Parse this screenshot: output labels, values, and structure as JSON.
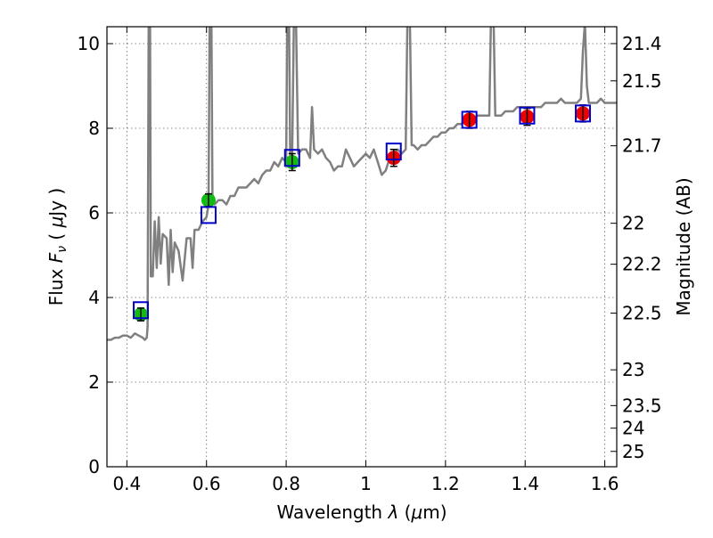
{
  "chart_data": {
    "type": "scatter",
    "title": "",
    "xlabel": "Wavelength  λ (μm)",
    "ylabel": "Flux  F_ν  ( μJy )",
    "ylabel_parts": {
      "prefix": "Flux ",
      "var": "F",
      "sub": "ν",
      "open": " ( ",
      "mu": "μ",
      "unit": "Jy )"
    },
    "xlabel_parts": {
      "prefix": "Wavelength  ",
      "var": "λ",
      "open": " (",
      "mu": "μ",
      "unit": "m)"
    },
    "y2label": "Magnitude (AB)",
    "xlim": [
      0.35,
      1.63
    ],
    "ylim": [
      0,
      10.4
    ],
    "grid": true,
    "x_ticks": [
      0.4,
      0.6,
      0.8,
      1.0,
      1.2,
      1.4,
      1.6
    ],
    "x_tick_labels": [
      "0.4",
      "0.6",
      "0.8",
      "1",
      "1.2",
      "1.4",
      "1.6"
    ],
    "y_ticks": [
      0,
      2,
      4,
      6,
      8,
      10
    ],
    "y_tick_labels": [
      "0",
      "2",
      "4",
      "6",
      "8",
      "10"
    ],
    "mag_ticks": [
      21.4,
      21.5,
      21.7,
      22,
      22.2,
      22.5,
      23,
      23.5,
      24,
      25
    ],
    "mag_tick_labels": [
      "21.4",
      "21.5",
      "21.7",
      "22",
      "22.2",
      "22.5",
      "23",
      "23.5",
      "24",
      "25"
    ],
    "colors": {
      "spectrum": "#808080",
      "model": "#0000cc",
      "optical": "#11bb11",
      "nir": "#ee0000"
    },
    "spectrum": [
      [
        0.35,
        3.0
      ],
      [
        0.36,
        3.0
      ],
      [
        0.37,
        3.05
      ],
      [
        0.38,
        3.05
      ],
      [
        0.39,
        3.1
      ],
      [
        0.4,
        3.1
      ],
      [
        0.41,
        3.05
      ],
      [
        0.42,
        3.15
      ],
      [
        0.43,
        3.1
      ],
      [
        0.44,
        3.05
      ],
      [
        0.445,
        3.0
      ],
      [
        0.45,
        3.05
      ],
      [
        0.452,
        3.3
      ],
      [
        0.455,
        11
      ],
      [
        0.458,
        11
      ],
      [
        0.46,
        4.5
      ],
      [
        0.465,
        4.5
      ],
      [
        0.47,
        5.8
      ],
      [
        0.475,
        4.7
      ],
      [
        0.48,
        5.9
      ],
      [
        0.485,
        4.8
      ],
      [
        0.49,
        5.5
      ],
      [
        0.5,
        5.4
      ],
      [
        0.505,
        4.3
      ],
      [
        0.51,
        5.6
      ],
      [
        0.515,
        4.6
      ],
      [
        0.52,
        5.3
      ],
      [
        0.53,
        5.1
      ],
      [
        0.54,
        4.4
      ],
      [
        0.55,
        5.4
      ],
      [
        0.56,
        5.4
      ],
      [
        0.565,
        4.7
      ],
      [
        0.57,
        5.6
      ],
      [
        0.58,
        5.6
      ],
      [
        0.59,
        5.8
      ],
      [
        0.6,
        5.9
      ],
      [
        0.605,
        6.2
      ],
      [
        0.608,
        11
      ],
      [
        0.612,
        11
      ],
      [
        0.615,
        6.3
      ],
      [
        0.62,
        6.2
      ],
      [
        0.63,
        6.3
      ],
      [
        0.64,
        6.3
      ],
      [
        0.65,
        6.2
      ],
      [
        0.66,
        6.4
      ],
      [
        0.67,
        6.4
      ],
      [
        0.68,
        6.6
      ],
      [
        0.69,
        6.6
      ],
      [
        0.7,
        6.6
      ],
      [
        0.71,
        6.7
      ],
      [
        0.72,
        6.8
      ],
      [
        0.73,
        6.7
      ],
      [
        0.74,
        6.9
      ],
      [
        0.75,
        7.0
      ],
      [
        0.76,
        7.0
      ],
      [
        0.77,
        7.2
      ],
      [
        0.78,
        7.1
      ],
      [
        0.79,
        7.3
      ],
      [
        0.8,
        7.2
      ],
      [
        0.803,
        11
      ],
      [
        0.807,
        11
      ],
      [
        0.81,
        7.3
      ],
      [
        0.815,
        7.3
      ],
      [
        0.82,
        11
      ],
      [
        0.824,
        11
      ],
      [
        0.83,
        7.4
      ],
      [
        0.84,
        7.5
      ],
      [
        0.85,
        7.5
      ],
      [
        0.86,
        7.3
      ],
      [
        0.865,
        8.5
      ],
      [
        0.87,
        7.5
      ],
      [
        0.88,
        7.4
      ],
      [
        0.89,
        7.5
      ],
      [
        0.9,
        7.3
      ],
      [
        0.91,
        7.2
      ],
      [
        0.92,
        7.0
      ],
      [
        0.93,
        7.1
      ],
      [
        0.94,
        7.1
      ],
      [
        0.95,
        7.5
      ],
      [
        0.96,
        7.3
      ],
      [
        0.97,
        7.1
      ],
      [
        0.98,
        7.2
      ],
      [
        0.99,
        7.3
      ],
      [
        1.0,
        7.4
      ],
      [
        1.01,
        7.3
      ],
      [
        1.02,
        7.5
      ],
      [
        1.03,
        7.2
      ],
      [
        1.04,
        6.9
      ],
      [
        1.05,
        7.0
      ],
      [
        1.06,
        7.3
      ],
      [
        1.07,
        7.4
      ],
      [
        1.08,
        7.5
      ],
      [
        1.09,
        7.4
      ],
      [
        1.1,
        7.5
      ],
      [
        1.105,
        11
      ],
      [
        1.11,
        11
      ],
      [
        1.115,
        7.6
      ],
      [
        1.12,
        7.6
      ],
      [
        1.13,
        7.5
      ],
      [
        1.14,
        7.6
      ],
      [
        1.15,
        7.6
      ],
      [
        1.16,
        7.7
      ],
      [
        1.17,
        7.8
      ],
      [
        1.18,
        7.8
      ],
      [
        1.19,
        7.9
      ],
      [
        1.2,
        7.9
      ],
      [
        1.21,
        8.0
      ],
      [
        1.22,
        8.0
      ],
      [
        1.23,
        8.1
      ],
      [
        1.24,
        8.1
      ],
      [
        1.25,
        8.2
      ],
      [
        1.26,
        8.2
      ],
      [
        1.27,
        8.2
      ],
      [
        1.28,
        8.3
      ],
      [
        1.29,
        8.3
      ],
      [
        1.3,
        8.3
      ],
      [
        1.31,
        8.3
      ],
      [
        1.315,
        11
      ],
      [
        1.32,
        11
      ],
      [
        1.325,
        8.3
      ],
      [
        1.33,
        8.3
      ],
      [
        1.34,
        8.3
      ],
      [
        1.35,
        8.4
      ],
      [
        1.36,
        8.4
      ],
      [
        1.37,
        8.4
      ],
      [
        1.38,
        8.5
      ],
      [
        1.39,
        8.5
      ],
      [
        1.4,
        8.5
      ],
      [
        1.41,
        8.5
      ],
      [
        1.42,
        8.5
      ],
      [
        1.43,
        8.5
      ],
      [
        1.44,
        8.5
      ],
      [
        1.45,
        8.6
      ],
      [
        1.46,
        8.6
      ],
      [
        1.47,
        8.6
      ],
      [
        1.48,
        8.6
      ],
      [
        1.49,
        8.7
      ],
      [
        1.5,
        8.6
      ],
      [
        1.51,
        8.6
      ],
      [
        1.52,
        8.6
      ],
      [
        1.53,
        8.6
      ],
      [
        1.54,
        8.7
      ],
      [
        1.545,
        9.8
      ],
      [
        1.55,
        10.5
      ],
      [
        1.555,
        9.0
      ],
      [
        1.56,
        8.6
      ],
      [
        1.57,
        8.6
      ],
      [
        1.58,
        8.6
      ],
      [
        1.59,
        8.7
      ],
      [
        1.6,
        8.6
      ],
      [
        1.61,
        8.6
      ],
      [
        1.62,
        8.6
      ],
      [
        1.63,
        8.6
      ]
    ],
    "model_points": [
      {
        "x": 0.435,
        "y": 3.7
      },
      {
        "x": 0.605,
        "y": 5.95
      },
      {
        "x": 0.815,
        "y": 7.3
      },
      {
        "x": 1.07,
        "y": 7.45
      },
      {
        "x": 1.26,
        "y": 8.2
      },
      {
        "x": 1.405,
        "y": 8.3
      },
      {
        "x": 1.545,
        "y": 8.35
      }
    ],
    "observed_points": [
      {
        "x": 0.435,
        "y": 3.6,
        "err": 0.15,
        "band": "optical"
      },
      {
        "x": 0.605,
        "y": 6.3,
        "err": 0.15,
        "band": "optical"
      },
      {
        "x": 0.815,
        "y": 7.2,
        "err": 0.2,
        "band": "optical"
      },
      {
        "x": 1.07,
        "y": 7.3,
        "err": 0.2,
        "band": "nir"
      },
      {
        "x": 1.26,
        "y": 8.2,
        "err": 0.2,
        "band": "nir"
      },
      {
        "x": 1.405,
        "y": 8.27,
        "err": 0.2,
        "band": "nir"
      },
      {
        "x": 1.545,
        "y": 8.35,
        "err": 0.2,
        "band": "nir"
      }
    ]
  }
}
